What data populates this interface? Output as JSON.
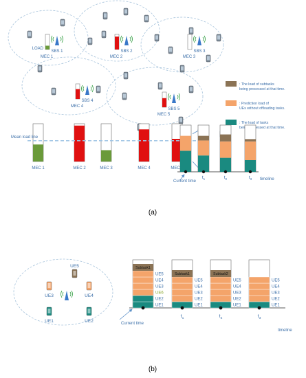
{
  "panel_a": {
    "mec_nodes": [
      {
        "mec": "MEC 1",
        "sbs": "SBS 1",
        "load_label": "LOAD",
        "load": 0.25,
        "color": "#6a9a3a"
      },
      {
        "mec": "MEC 2",
        "sbs": "SBS 2",
        "load": 0.85,
        "color": "#e01010"
      },
      {
        "mec": "MEC 3",
        "sbs": "SBS 3",
        "load": 0.0,
        "color": "#6a9a3a"
      },
      {
        "mec": "MEC 4",
        "sbs": "SBS 4",
        "load": 0.65,
        "color": "#e01010"
      },
      {
        "mec": "MEC 5",
        "sbs": "SBS 5",
        "load": 0.6,
        "color": "#e01010"
      }
    ],
    "legend": [
      {
        "color": "#8b7355",
        "text": ": The load of subtasks being processed at that time."
      },
      {
        "color": "#f4a46a",
        "text": ": Prediction load of UEs without offloading tasks."
      },
      {
        "color": "#1a8a80",
        "text": ": The load of tasks being processed at that time."
      }
    ],
    "mean_load_label": "Mean load line",
    "mean_load": 0.55,
    "load_bars": [
      {
        "label": "MEC 1",
        "load": 0.45,
        "color": "#6a9a3a"
      },
      {
        "label": "MEC 2",
        "load": 0.95,
        "color": "#e01010"
      },
      {
        "label": "MEC 3",
        "load": 0.3,
        "color": "#6a9a3a"
      },
      {
        "label": "MEC 4",
        "load": 0.85,
        "color": "#e01010"
      },
      {
        "label": "MEC 5",
        "load": 0.6,
        "color": "#e01010"
      }
    ],
    "timeline_stacks": [
      {
        "label": "",
        "teal": 0.45,
        "orange": 0.32,
        "brown": 0.0
      },
      {
        "label": "t1",
        "teal": 0.35,
        "orange": 0.32,
        "brown": 0.1
      },
      {
        "label": "t2",
        "teal": 0.3,
        "orange": 0.35,
        "brown": 0.15
      },
      {
        "label": "t3",
        "teal": 0.25,
        "orange": 0.4,
        "brown": 0.05
      }
    ],
    "current_time_label": "Current time",
    "timeline_label": "timeline",
    "caption": "(a)"
  },
  "panel_b": {
    "ues": [
      {
        "name": "UE5",
        "color": "#8b7355"
      },
      {
        "name": "UE3",
        "color": "#f4a46a"
      },
      {
        "name": "UE4",
        "color": "#f4a46a"
      },
      {
        "name": "UE1",
        "color": "#1a8a80"
      },
      {
        "name": "UE2",
        "color": "#1a8a80"
      }
    ],
    "stacks": [
      {
        "time_label": "",
        "subtask_label": "Subtask1",
        "labels": [
          "UE5",
          "UE4",
          "UE3",
          "UE6",
          "UE2",
          "UE1"
        ]
      },
      {
        "time_label": "t1",
        "subtask_label": "Subtask1",
        "labels": [
          "UE5",
          "UE4",
          "UE3",
          "UE2",
          "UE1"
        ]
      },
      {
        "time_label": "t2",
        "subtask_label": "Subtask2",
        "labels": [
          "UE5",
          "UE4",
          "UE3",
          "UE2",
          "UE1"
        ]
      },
      {
        "time_label": "t3",
        "subtask_label": "",
        "labels": [
          "UE5",
          "UE4",
          "UE3",
          "UE2",
          "UE1"
        ]
      }
    ],
    "current_time_label": "Current time",
    "timeline_label": "timeline",
    "caption": "(b)"
  }
}
